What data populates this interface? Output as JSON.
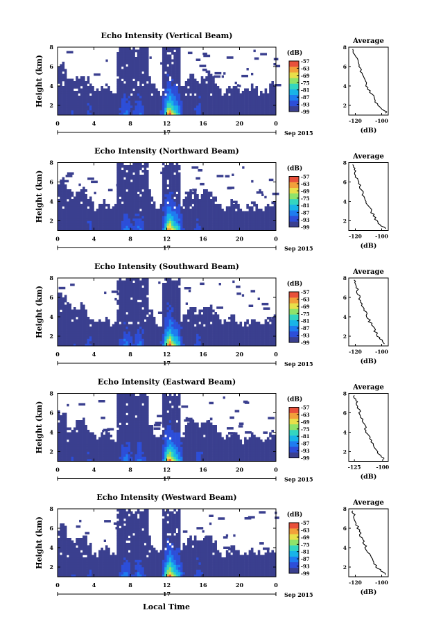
{
  "figure": {
    "xlabel": "Local Time",
    "date_label": "Sep 2015",
    "day_label": "17",
    "colorbar_unit": "(dB)",
    "colorbar_ticks": [
      "-57",
      "-63",
      "-69",
      "-75",
      "-81",
      "-87",
      "-93",
      "-99"
    ],
    "colormap": [
      "#3a3f8f",
      "#2d4ed8",
      "#1e7cf0",
      "#18b4e8",
      "#33d6c0",
      "#8fe36a",
      "#e8e04a",
      "#f2a03a",
      "#e8503a"
    ],
    "nodata_color": "#ffffff"
  },
  "chart_data": [
    {
      "type": "heatmap",
      "title": "Echo Intensity (Vertical Beam)",
      "ylabel": "Height (km)",
      "xticks": [
        "0",
        "4",
        "8",
        "12",
        "16",
        "20",
        "0"
      ],
      "yticks": [
        "2",
        "4",
        "6",
        "8"
      ],
      "xlim": [
        0,
        24
      ],
      "ylim": [
        1,
        8
      ],
      "zlim": [
        -99,
        -57
      ],
      "avg": {
        "title": "Average",
        "xlabel": "(dB)",
        "xticks": [
          "-120",
          "-100"
        ],
        "xlim": [
          -125,
          -95
        ],
        "ylim": [
          1,
          8
        ],
        "yticks": [
          "2",
          "4",
          "6",
          "8"
        ],
        "height": [
          1.2,
          2,
          3,
          4,
          5,
          6,
          7,
          7.8
        ],
        "value": [
          -96,
          -103,
          -107,
          -111,
          -114,
          -117,
          -120,
          -122
        ]
      }
    },
    {
      "type": "heatmap",
      "title": "Echo Intensity (Northward Beam)",
      "ylabel": "Height (km)",
      "xticks": [
        "0",
        "4",
        "8",
        "12",
        "16",
        "20",
        "0"
      ],
      "yticks": [
        "2",
        "4",
        "6",
        "8"
      ],
      "xlim": [
        0,
        24
      ],
      "ylim": [
        1,
        8
      ],
      "zlim": [
        -99,
        -57
      ],
      "avg": {
        "title": "Average",
        "xlabel": "(dB)",
        "xticks": [
          "-120",
          "-100"
        ],
        "xlim": [
          -125,
          -95
        ],
        "ylim": [
          1,
          8
        ],
        "yticks": [
          "2",
          "4",
          "6",
          "8"
        ],
        "height": [
          1.2,
          2,
          3,
          4,
          5,
          6,
          7,
          7.8
        ],
        "value": [
          -97,
          -104,
          -108,
          -112,
          -115,
          -118,
          -120,
          -122
        ]
      }
    },
    {
      "type": "heatmap",
      "title": "Echo Intensity (Southward Beam)",
      "ylabel": "Height (km)",
      "xticks": [
        "0",
        "4",
        "8",
        "12",
        "16",
        "20",
        "0"
      ],
      "yticks": [
        "2",
        "4",
        "6",
        "8"
      ],
      "xlim": [
        0,
        24
      ],
      "ylim": [
        1,
        8
      ],
      "zlim": [
        -99,
        -57
      ],
      "avg": {
        "title": "Average",
        "xlabel": "(dB)",
        "xticks": [
          "-120",
          "-100"
        ],
        "xlim": [
          -125,
          -95
        ],
        "ylim": [
          1,
          8
        ],
        "yticks": [
          "2",
          "4",
          "6",
          "8"
        ],
        "height": [
          1.2,
          2,
          3,
          4,
          5,
          6,
          7,
          7.8
        ],
        "value": [
          -97,
          -103,
          -107,
          -111,
          -114,
          -117,
          -119,
          -121
        ]
      }
    },
    {
      "type": "heatmap",
      "title": "Echo Intensity (Eastward Beam)",
      "ylabel": "Height (km)",
      "xticks": [
        "0",
        "4",
        "8",
        "12",
        "16",
        "20",
        "0"
      ],
      "yticks": [
        "2",
        "4",
        "6",
        "8"
      ],
      "xlim": [
        0,
        24
      ],
      "ylim": [
        1,
        8
      ],
      "zlim": [
        -99,
        -57
      ],
      "avg": {
        "title": "Average",
        "xlabel": "(dB)",
        "xticks": [
          "-125",
          "-100"
        ],
        "xlim": [
          -130,
          -95
        ],
        "ylim": [
          1,
          8
        ],
        "yticks": [
          "2",
          "4",
          "6",
          "8"
        ],
        "height": [
          1.2,
          2,
          3,
          4,
          5,
          6,
          7,
          7.8
        ],
        "value": [
          -98,
          -105,
          -110,
          -114,
          -117,
          -120,
          -123,
          -125
        ]
      }
    },
    {
      "type": "heatmap",
      "title": "Echo Intensity (Westward Beam)",
      "ylabel": "Height (km)",
      "xticks": [
        "0",
        "4",
        "8",
        "12",
        "16",
        "20",
        "0"
      ],
      "yticks": [
        "2",
        "4",
        "6",
        "8"
      ],
      "xlim": [
        0,
        24
      ],
      "ylim": [
        1,
        8
      ],
      "zlim": [
        -99,
        -57
      ],
      "avg": {
        "title": "Average",
        "xlabel": "(dB)",
        "xticks": [
          "-120",
          "-100"
        ],
        "xlim": [
          -125,
          -95
        ],
        "ylim": [
          1,
          8
        ],
        "yticks": [
          "2",
          "4",
          "6",
          "8"
        ],
        "height": [
          1.2,
          2,
          3,
          4,
          5,
          6,
          7,
          7.8
        ],
        "value": [
          -97,
          -104,
          -108,
          -112,
          -115,
          -118,
          -120,
          -122
        ]
      }
    }
  ]
}
